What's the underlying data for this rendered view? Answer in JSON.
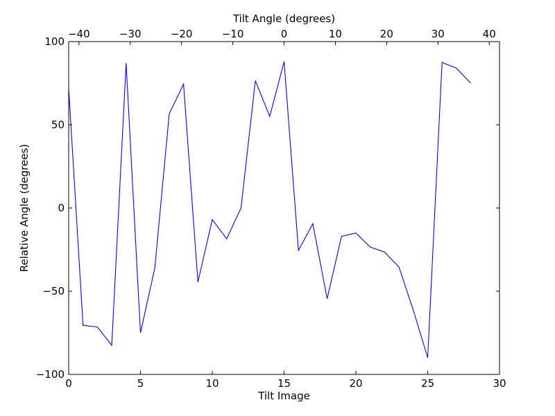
{
  "chart_data": {
    "type": "line",
    "title": "",
    "xlabel": "Tilt Image",
    "ylabel": "Relative Angle (degrees)",
    "top_xlabel": "Tilt Angle (degrees)",
    "xlim": [
      0,
      30
    ],
    "ylim": [
      -100,
      100
    ],
    "top_xlim": [
      -42,
      42
    ],
    "x_ticks": [
      0,
      5,
      10,
      15,
      20,
      25,
      30
    ],
    "x_tick_labels": [
      "0",
      "5",
      "10",
      "15",
      "20",
      "25",
      "30"
    ],
    "y_ticks": [
      -100,
      -50,
      0,
      50,
      100
    ],
    "y_tick_labels": [
      "−100",
      "−50",
      "0",
      "50",
      "100"
    ],
    "top_x_ticks": [
      -40,
      -30,
      -20,
      -10,
      0,
      10,
      20,
      30,
      40
    ],
    "top_x_tick_labels": [
      "−40",
      "−30",
      "−20",
      "−10",
      "0",
      "10",
      "20",
      "30",
      "40"
    ],
    "grid": false,
    "line_color": "#0000ff",
    "series": [
      {
        "x": [
          0,
          1,
          2,
          3,
          4,
          5,
          6,
          7,
          8,
          9,
          10,
          11,
          12,
          13,
          14,
          15,
          16,
          17,
          18,
          19,
          20,
          21,
          22,
          23,
          24,
          25,
          26,
          27,
          28
        ],
        "values": [
          72,
          -70.5,
          -71.5,
          -82.5,
          87,
          -75,
          -36,
          56.5,
          74.5,
          -44.5,
          -7,
          -18.5,
          0,
          76.5,
          55,
          88,
          -25.5,
          -9.5,
          -54.5,
          -17,
          -15,
          -23.5,
          -26.5,
          -35.5,
          -61.5,
          -90,
          87.5,
          84,
          75
        ]
      }
    ]
  }
}
